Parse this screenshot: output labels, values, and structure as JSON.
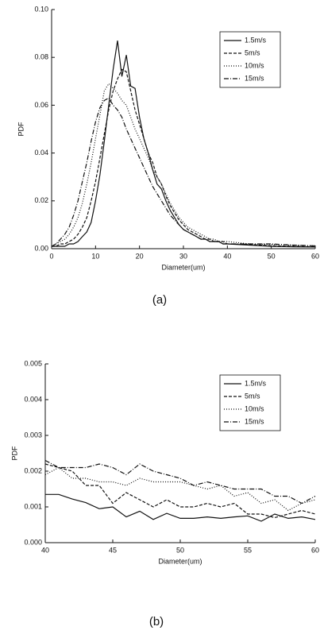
{
  "chart_data": [
    {
      "type": "line",
      "xlabel": "Diameter(um)",
      "ylabel": "PDF",
      "caption": "(a)",
      "x": [
        0,
        1,
        2,
        3,
        4,
        5,
        6,
        7,
        8,
        9,
        10,
        11,
        12,
        13,
        14,
        15,
        16,
        17,
        18,
        19,
        20,
        21,
        22,
        23,
        24,
        25,
        26,
        27,
        28,
        29,
        30,
        31,
        32,
        33,
        34,
        35,
        36,
        37,
        38,
        39,
        40,
        45,
        50,
        55,
        60
      ],
      "xlim": [
        0,
        60
      ],
      "xticks": [
        0,
        10,
        20,
        30,
        40,
        50,
        60
      ],
      "ylim": [
        0,
        0.1
      ],
      "yticks": [
        {
          "value": 0,
          "label": "0.00"
        },
        0.02,
        0.04,
        0.06,
        0.08,
        {
          "value": 0.1,
          "label": "0.10"
        }
      ],
      "legend": "upper right",
      "series": [
        {
          "name": "1.5m/s",
          "color": "#111111",
          "dash": "none",
          "values": [
            0.001,
            0.001,
            0.001,
            0.001,
            0.002,
            0.002,
            0.003,
            0.005,
            0.007,
            0.011,
            0.02,
            0.031,
            0.045,
            0.06,
            0.075,
            0.087,
            0.072,
            0.081,
            0.068,
            0.067,
            0.055,
            0.046,
            0.04,
            0.033,
            0.027,
            0.025,
            0.02,
            0.016,
            0.013,
            0.01,
            0.008,
            0.007,
            0.006,
            0.005,
            0.004,
            0.004,
            0.003,
            0.003,
            0.003,
            0.002,
            0.002,
            0.0015,
            0.001,
            0.0008,
            0.0007
          ]
        },
        {
          "name": "5m/s",
          "color": "#111111",
          "dash": "4,2",
          "values": [
            0.001,
            0.001,
            0.002,
            0.002,
            0.003,
            0.004,
            0.006,
            0.009,
            0.013,
            0.02,
            0.028,
            0.038,
            0.048,
            0.058,
            0.066,
            0.071,
            0.075,
            0.074,
            0.066,
            0.058,
            0.052,
            0.046,
            0.04,
            0.036,
            0.03,
            0.027,
            0.022,
            0.018,
            0.015,
            0.012,
            0.01,
            0.008,
            0.007,
            0.006,
            0.005,
            0.004,
            0.004,
            0.003,
            0.003,
            0.003,
            0.002,
            0.0018,
            0.0012,
            0.001,
            0.0008
          ]
        },
        {
          "name": "10m/s",
          "color": "#111111",
          "dash": "1,2",
          "values": [
            0.001,
            0.002,
            0.003,
            0.004,
            0.006,
            0.009,
            0.013,
            0.019,
            0.027,
            0.036,
            0.046,
            0.056,
            0.066,
            0.069,
            0.067,
            0.065,
            0.062,
            0.06,
            0.055,
            0.05,
            0.046,
            0.042,
            0.038,
            0.033,
            0.03,
            0.027,
            0.023,
            0.019,
            0.016,
            0.013,
            0.011,
            0.009,
            0.008,
            0.007,
            0.006,
            0.005,
            0.004,
            0.004,
            0.003,
            0.003,
            0.003,
            0.002,
            0.0018,
            0.0014,
            0.0012
          ]
        },
        {
          "name": "15m/s",
          "color": "#111111",
          "dash": "6,2,1,2",
          "values": [
            0.001,
            0.002,
            0.004,
            0.006,
            0.009,
            0.014,
            0.02,
            0.028,
            0.036,
            0.045,
            0.053,
            0.059,
            0.062,
            0.063,
            0.06,
            0.058,
            0.055,
            0.05,
            0.046,
            0.042,
            0.038,
            0.034,
            0.03,
            0.026,
            0.023,
            0.02,
            0.017,
            0.014,
            0.012,
            0.01,
            0.008,
            0.007,
            0.006,
            0.005,
            0.004,
            0.004,
            0.003,
            0.003,
            0.003,
            0.002,
            0.002,
            0.002,
            0.002,
            0.0015,
            0.0012
          ]
        }
      ]
    },
    {
      "type": "line",
      "xlabel": "Diameter(um)",
      "ylabel": "PDF",
      "caption": "(b)",
      "x": [
        40,
        41,
        42,
        43,
        44,
        45,
        46,
        47,
        48,
        49,
        50,
        51,
        52,
        53,
        54,
        55,
        56,
        57,
        58,
        59,
        60
      ],
      "xlim": [
        40,
        60
      ],
      "xticks": [
        40,
        45,
        50,
        55,
        60
      ],
      "ylim": [
        0,
        0.005
      ],
      "yticks": [
        {
          "value": 0,
          "label": "0.000"
        },
        0.001,
        0.002,
        0.003,
        0.004,
        0.005
      ],
      "legend": "upper right",
      "series": [
        {
          "name": "1.5m/s",
          "color": "#111111",
          "dash": "none",
          "values": [
            0.00135,
            0.00135,
            0.00122,
            0.00112,
            0.00095,
            0.001,
            0.00072,
            0.00088,
            0.00065,
            0.00082,
            0.00068,
            0.00068,
            0.00072,
            0.00068,
            0.00072,
            0.00075,
            0.0006,
            0.0008,
            0.00068,
            0.00072,
            0.00065
          ]
        },
        {
          "name": "5m/s",
          "color": "#111111",
          "dash": "4,2",
          "values": [
            0.0022,
            0.0021,
            0.002,
            0.0016,
            0.0016,
            0.0011,
            0.0014,
            0.0012,
            0.001,
            0.0012,
            0.001,
            0.001,
            0.0011,
            0.001,
            0.0011,
            0.0008,
            0.0008,
            0.0007,
            0.0008,
            0.0009,
            0.0008
          ]
        },
        {
          "name": "10m/s",
          "color": "#111111",
          "dash": "1,2",
          "values": [
            0.0019,
            0.0021,
            0.0018,
            0.0018,
            0.0017,
            0.0017,
            0.0016,
            0.0018,
            0.0017,
            0.0017,
            0.0017,
            0.0016,
            0.0015,
            0.0016,
            0.0013,
            0.0014,
            0.0011,
            0.0012,
            0.0009,
            0.0011,
            0.0012
          ]
        },
        {
          "name": "15m/s",
          "color": "#111111",
          "dash": "6,2,1,2",
          "values": [
            0.0023,
            0.0021,
            0.0021,
            0.0021,
            0.0022,
            0.0021,
            0.0019,
            0.0022,
            0.002,
            0.0019,
            0.0018,
            0.0016,
            0.0017,
            0.0016,
            0.0015,
            0.0015,
            0.0015,
            0.0013,
            0.0013,
            0.0011,
            0.0013
          ]
        }
      ]
    }
  ]
}
